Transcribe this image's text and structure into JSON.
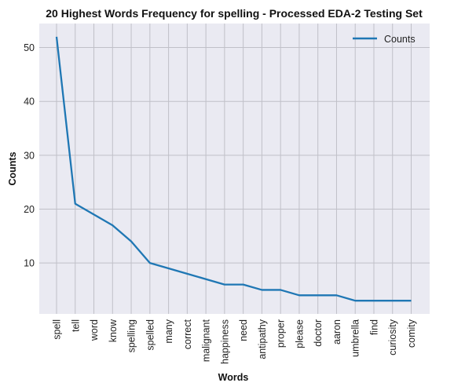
{
  "chart_data": {
    "type": "line",
    "title": "20 Highest Words Frequency for spelling - Processed EDA-2 Testing Set",
    "xlabel": "Words",
    "ylabel": "Counts",
    "categories": [
      "spell",
      "tell",
      "word",
      "know",
      "spelling",
      "spelled",
      "many",
      "correct",
      "malignant",
      "happiness",
      "need",
      "antipathy",
      "proper",
      "please",
      "doctor",
      "aaron",
      "umbrella",
      "find",
      "curiosity",
      "comity"
    ],
    "series": [
      {
        "name": "Counts",
        "values": [
          52,
          21,
          19,
          17,
          14,
          10,
          9,
          8,
          7,
          6,
          6,
          5,
          5,
          4,
          4,
          4,
          3,
          3,
          3,
          3
        ]
      }
    ],
    "ylim": [
      0.55,
      54.45
    ],
    "yticks": [
      10,
      20,
      30,
      40,
      50
    ],
    "grid": true,
    "legend_position": "top-right",
    "colors": {
      "line": "#1f77b4",
      "plot_bg": "#eaeaf2",
      "grid": "#c0c0c8"
    }
  }
}
